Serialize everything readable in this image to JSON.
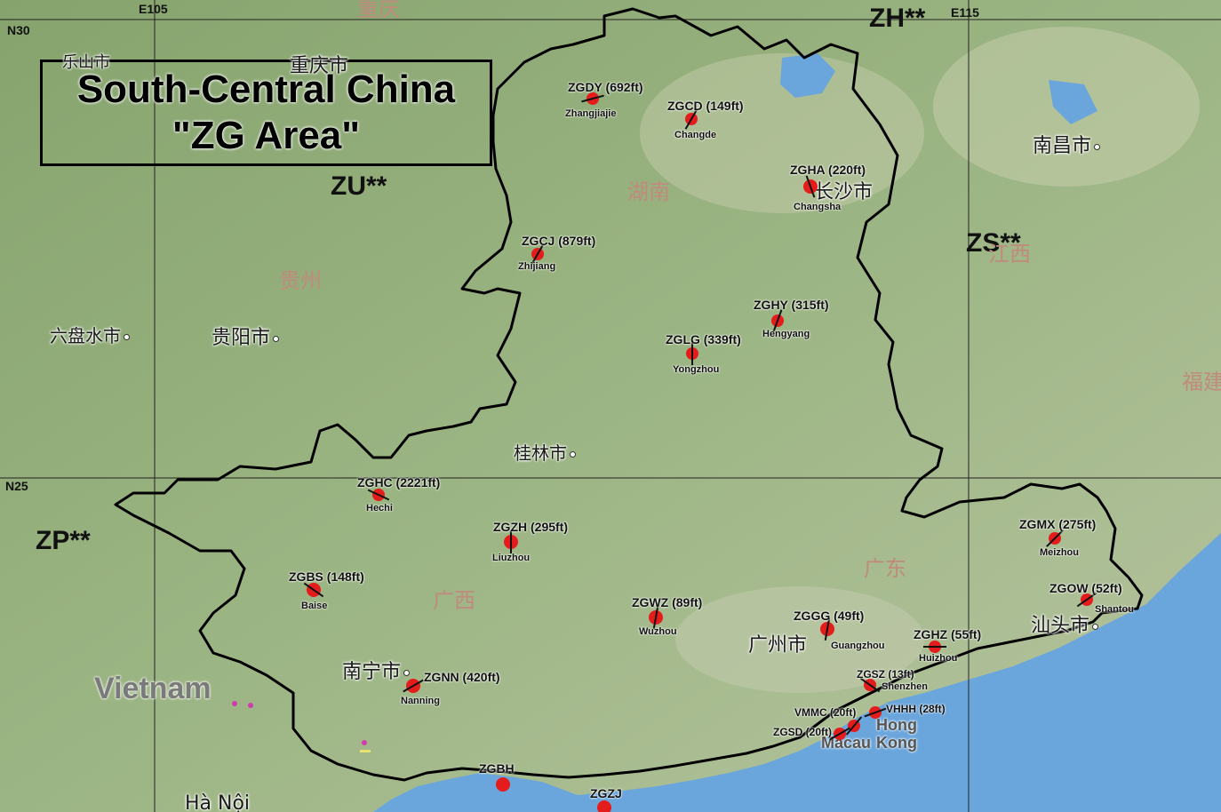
{
  "title": {
    "line1": "South-Central China",
    "line2": "\"ZG Area\""
  },
  "grid_labels": {
    "e105": "E105",
    "e115": "E115",
    "n30": "N30",
    "n25": "N25"
  },
  "fir_labels": {
    "zh": "ZH**",
    "zu": "ZU**",
    "zs": "ZS**",
    "zp": "ZP**"
  },
  "provinces": {
    "hunan": "湖南",
    "guizhou": "贵州",
    "guangxi": "广西",
    "guangdong": "广东",
    "jiangxi": "江西",
    "fujian": "福建",
    "chongqing_top": "重庆"
  },
  "cities": {
    "leshan": "乐山市",
    "chongqing": "重庆市",
    "nanchang": "南昌市",
    "changsha": "长沙市",
    "liupanshui": "六盘水市",
    "guiyang": "贵阳市",
    "guilin": "桂林市",
    "guangzhou": "广州市",
    "nanning": "南宁市",
    "shantou": "汕头市",
    "hanoi": "Hà Nội"
  },
  "country_labels": {
    "vietnam": "Vietnam",
    "hong": "Hong",
    "kong": "Kong",
    "macau": "Macau"
  },
  "airports": [
    {
      "code": "ZGDY (692ft)",
      "name": "Zhangjiajie"
    },
    {
      "code": "ZGCD (149ft)",
      "name": "Changde"
    },
    {
      "code": "ZGHA (220ft)",
      "name": "Changsha"
    },
    {
      "code": "ZGCJ (879ft)",
      "name": "Zhijiang"
    },
    {
      "code": "ZGHY (315ft)",
      "name": "Hengyang"
    },
    {
      "code": "ZGLG (339ft)",
      "name": "Yongzhou"
    },
    {
      "code": "ZGHC (2221ft)",
      "name": "Hechi"
    },
    {
      "code": "ZGZH (295ft)",
      "name": "Liuzhou"
    },
    {
      "code": "ZGBS (148ft)",
      "name": "Baise"
    },
    {
      "code": "ZGWZ (89ft)",
      "name": "Wuzhou"
    },
    {
      "code": "ZGGG (49ft)",
      "name": "Guangzhou"
    },
    {
      "code": "ZGHZ (55ft)",
      "name": "Huizhou"
    },
    {
      "code": "ZGMX (275ft)",
      "name": "Meizhou"
    },
    {
      "code": "ZGOW (52ft)",
      "name": "Shantou"
    },
    {
      "code": "ZGSZ (13ft)",
      "name": "Shenzhen"
    },
    {
      "code": "VHHH (28ft)",
      "name": ""
    },
    {
      "code": "VMMC (20ft)",
      "name": ""
    },
    {
      "code": "ZGSD (20ft)",
      "name": ""
    },
    {
      "code": "ZGNN (420ft)",
      "name": "Nanning"
    },
    {
      "code": "ZGBH",
      "name": ""
    },
    {
      "code": "ZGZJ",
      "name": ""
    }
  ],
  "colors": {
    "land": "#8fae78",
    "sea": "#6aa6dc",
    "airport_dot": "#e51c1c",
    "border": "#000000",
    "province_label": "#c08a7c"
  }
}
